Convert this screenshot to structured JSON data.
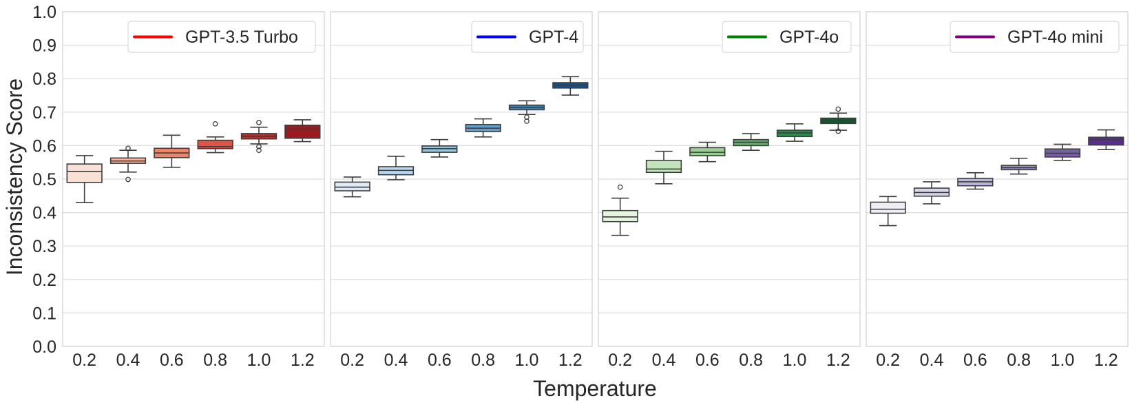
{
  "chart_data": {
    "type": "boxplot",
    "xlabel": "Temperature",
    "ylabel": "Inconsistency Score",
    "ylim": [
      0.0,
      1.0
    ],
    "yticks": [
      "0.0",
      "0.1",
      "0.2",
      "0.3",
      "0.4",
      "0.5",
      "0.6",
      "0.7",
      "0.8",
      "0.9",
      "1.0"
    ],
    "categories": [
      "0.2",
      "0.4",
      "0.6",
      "0.8",
      "1.0",
      "1.2"
    ],
    "grid": true,
    "legend_placement": "upper-right",
    "panels": [
      {
        "name": "GPT-3.5 Turbo",
        "legend_color": "#ff0000",
        "box_colors": [
          "#fbe0d6",
          "#f8b59c",
          "#f08469",
          "#df5446",
          "#c12c2b",
          "#9b1b20"
        ],
        "boxes": [
          {
            "whislo": 0.43,
            "q1": 0.49,
            "med": 0.523,
            "q3": 0.545,
            "whishi": 0.57,
            "fliers": []
          },
          {
            "whislo": 0.521,
            "q1": 0.547,
            "med": 0.554,
            "q3": 0.563,
            "whishi": 0.586,
            "fliers": [
              0.592,
              0.499
            ]
          },
          {
            "whislo": 0.535,
            "q1": 0.564,
            "med": 0.578,
            "q3": 0.592,
            "whishi": 0.631,
            "fliers": []
          },
          {
            "whislo": 0.579,
            "q1": 0.591,
            "med": 0.597,
            "q3": 0.616,
            "whishi": 0.626,
            "fliers": [
              0.665
            ]
          },
          {
            "whislo": 0.605,
            "q1": 0.62,
            "med": 0.628,
            "q3": 0.636,
            "whishi": 0.655,
            "fliers": [
              0.669,
              0.597,
              0.586
            ]
          },
          {
            "whislo": 0.612,
            "q1": 0.622,
            "med": 0.649,
            "q3": 0.661,
            "whishi": 0.677,
            "fliers": []
          }
        ]
      },
      {
        "name": "GPT-4",
        "legend_color": "#0000ff",
        "box_colors": [
          "#deebf7",
          "#bcd6ec",
          "#93c3df",
          "#5e9fcd",
          "#3181bd",
          "#135195"
        ],
        "boxes": [
          {
            "whislo": 0.447,
            "q1": 0.465,
            "med": 0.476,
            "q3": 0.491,
            "whishi": 0.506,
            "fliers": []
          },
          {
            "whislo": 0.498,
            "q1": 0.513,
            "med": 0.526,
            "q3": 0.537,
            "whishi": 0.568,
            "fliers": []
          },
          {
            "whislo": 0.566,
            "q1": 0.58,
            "med": 0.591,
            "q3": 0.599,
            "whishi": 0.618,
            "fliers": []
          },
          {
            "whislo": 0.626,
            "q1": 0.642,
            "med": 0.652,
            "q3": 0.663,
            "whishi": 0.68,
            "fliers": []
          },
          {
            "whislo": 0.693,
            "q1": 0.707,
            "med": 0.714,
            "q3": 0.721,
            "whishi": 0.734,
            "fliers": [
              0.685,
              0.673
            ]
          },
          {
            "whislo": 0.751,
            "q1": 0.772,
            "med": 0.78,
            "q3": 0.788,
            "whishi": 0.806,
            "fliers": []
          }
        ]
      },
      {
        "name": "GPT-4o",
        "legend_color": "#008000",
        "box_colors": [
          "#e5f5e0",
          "#c2e4bb",
          "#96cf90",
          "#5db46a",
          "#2e8b4b",
          "#0d5a2b"
        ],
        "boxes": [
          {
            "whislo": 0.332,
            "q1": 0.373,
            "med": 0.387,
            "q3": 0.406,
            "whishi": 0.443,
            "fliers": [
              0.476
            ]
          },
          {
            "whislo": 0.486,
            "q1": 0.52,
            "med": 0.53,
            "q3": 0.556,
            "whishi": 0.583,
            "fliers": []
          },
          {
            "whislo": 0.552,
            "q1": 0.57,
            "med": 0.58,
            "q3": 0.594,
            "whishi": 0.61,
            "fliers": []
          },
          {
            "whislo": 0.586,
            "q1": 0.6,
            "med": 0.61,
            "q3": 0.618,
            "whishi": 0.636,
            "fliers": []
          },
          {
            "whislo": 0.613,
            "q1": 0.627,
            "med": 0.638,
            "q3": 0.646,
            "whishi": 0.665,
            "fliers": []
          },
          {
            "whislo": 0.646,
            "q1": 0.666,
            "med": 0.674,
            "q3": 0.682,
            "whishi": 0.697,
            "fliers": [
              0.709,
              0.643
            ]
          }
        ]
      },
      {
        "name": "GPT-4o mini",
        "legend_color": "#800080",
        "box_colors": [
          "#efedf5",
          "#d9d8ea",
          "#b9b8d9",
          "#9894c5",
          "#765fa8",
          "#5a2f8c"
        ],
        "boxes": [
          {
            "whislo": 0.361,
            "q1": 0.398,
            "med": 0.41,
            "q3": 0.431,
            "whishi": 0.448,
            "fliers": []
          },
          {
            "whislo": 0.426,
            "q1": 0.449,
            "med": 0.46,
            "q3": 0.473,
            "whishi": 0.492,
            "fliers": []
          },
          {
            "whislo": 0.47,
            "q1": 0.48,
            "med": 0.492,
            "q3": 0.502,
            "whishi": 0.519,
            "fliers": []
          },
          {
            "whislo": 0.515,
            "q1": 0.528,
            "med": 0.534,
            "q3": 0.541,
            "whishi": 0.562,
            "fliers": []
          },
          {
            "whislo": 0.556,
            "q1": 0.566,
            "med": 0.577,
            "q3": 0.59,
            "whishi": 0.604,
            "fliers": []
          },
          {
            "whislo": 0.588,
            "q1": 0.602,
            "med": 0.618,
            "q3": 0.625,
            "whishi": 0.647,
            "fliers": []
          }
        ]
      }
    ]
  }
}
